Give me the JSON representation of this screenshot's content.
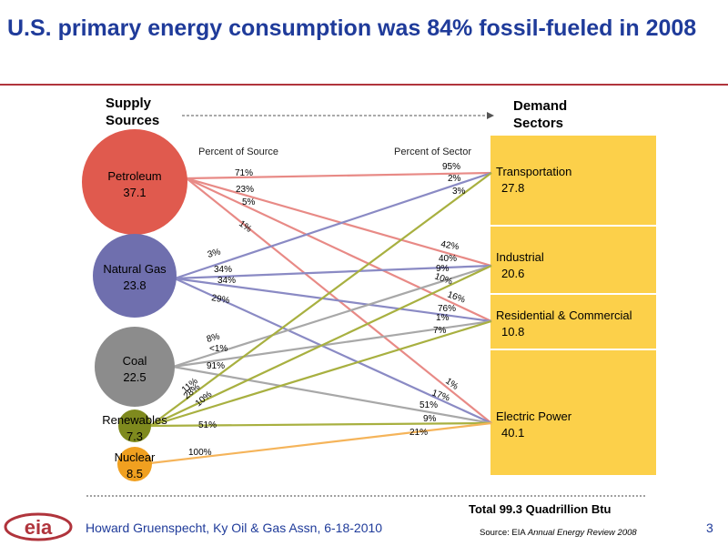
{
  "title": "U.S. primary energy consumption was 84% fossil-fueled in 2008",
  "headers": {
    "supply": [
      "Supply",
      "Sources"
    ],
    "demand": [
      "Demand",
      "Sectors"
    ],
    "percent_of_source": "Percent of Source",
    "percent_of_sector": "Percent of Sector"
  },
  "sources": [
    {
      "name": "Petroleum",
      "value": "37.1",
      "color": "#e05a4e"
    },
    {
      "name": "Natural Gas",
      "value": "23.8",
      "color": "#6f6fae"
    },
    {
      "name": "Coal",
      "value": "22.5",
      "color": "#8c8c8c"
    },
    {
      "name": "Renewables",
      "value": "7.3",
      "color": "#7f8a1e"
    },
    {
      "name": "Nuclear",
      "value": "8.5",
      "color": "#f0a020"
    }
  ],
  "sectors": [
    {
      "name": "Transportation",
      "value": "27.8"
    },
    {
      "name": "Industrial",
      "value": "20.6"
    },
    {
      "name": "Residential & Commercial",
      "value": "10.8"
    },
    {
      "name": "Electric Power",
      "value": "40.1"
    }
  ],
  "sector_box_color": "#fcd04a",
  "line_colors": {
    "Petroleum": "#e88a86",
    "Natural Gas": "#8a8ac4",
    "Coal": "#a8a8a8",
    "Renewables": "#a8b040",
    "Nuclear": "#f5b45a"
  },
  "flows": [
    {
      "source": "Petroleum",
      "sector": "Transportation",
      "pct_source": "71%",
      "pct_sector": "95%"
    },
    {
      "source": "Petroleum",
      "sector": "Industrial",
      "pct_source": "23%",
      "pct_sector": "42%"
    },
    {
      "source": "Petroleum",
      "sector": "Residential & Commercial",
      "pct_source": "5%",
      "pct_sector": "16%"
    },
    {
      "source": "Petroleum",
      "sector": "Electric Power",
      "pct_source": "1%",
      "pct_sector": "1%"
    },
    {
      "source": "Natural Gas",
      "sector": "Transportation",
      "pct_source": "3%",
      "pct_sector": "2%"
    },
    {
      "source": "Natural Gas",
      "sector": "Industrial",
      "pct_source": "34%",
      "pct_sector": "40%"
    },
    {
      "source": "Natural Gas",
      "sector": "Residential & Commercial",
      "pct_source": "34%",
      "pct_sector": "76%"
    },
    {
      "source": "Natural Gas",
      "sector": "Electric Power",
      "pct_source": "29%",
      "pct_sector": "17%"
    },
    {
      "source": "Coal",
      "sector": "Industrial",
      "pct_source": "8%",
      "pct_sector": "9%"
    },
    {
      "source": "Coal",
      "sector": "Residential & Commercial",
      "pct_source": "<1%",
      "pct_sector": "1%"
    },
    {
      "source": "Coal",
      "sector": "Electric Power",
      "pct_source": "91%",
      "pct_sector": "51%"
    },
    {
      "source": "Renewables",
      "sector": "Transportation",
      "pct_source": "11%",
      "pct_sector": "3%"
    },
    {
      "source": "Renewables",
      "sector": "Industrial",
      "pct_source": "28%",
      "pct_sector": "10%"
    },
    {
      "source": "Renewables",
      "sector": "Residential & Commercial",
      "pct_source": "10%",
      "pct_sector": "7%"
    },
    {
      "source": "Renewables",
      "sector": "Electric Power",
      "pct_source": "51%",
      "pct_sector": "9%"
    },
    {
      "source": "Nuclear",
      "sector": "Electric Power",
      "pct_source": "100%",
      "pct_sector": "21%"
    }
  ],
  "total": "Total  99.3 Quadrillion Btu",
  "footer": {
    "logo_text": "eia",
    "author": "Howard Gruenspecht,  Ky Oil & Gas Assn, 6-18-2010",
    "source_prefix": "Source: EIA ",
    "source_italic": "Annual Energy Review 2008",
    "page": "3"
  }
}
